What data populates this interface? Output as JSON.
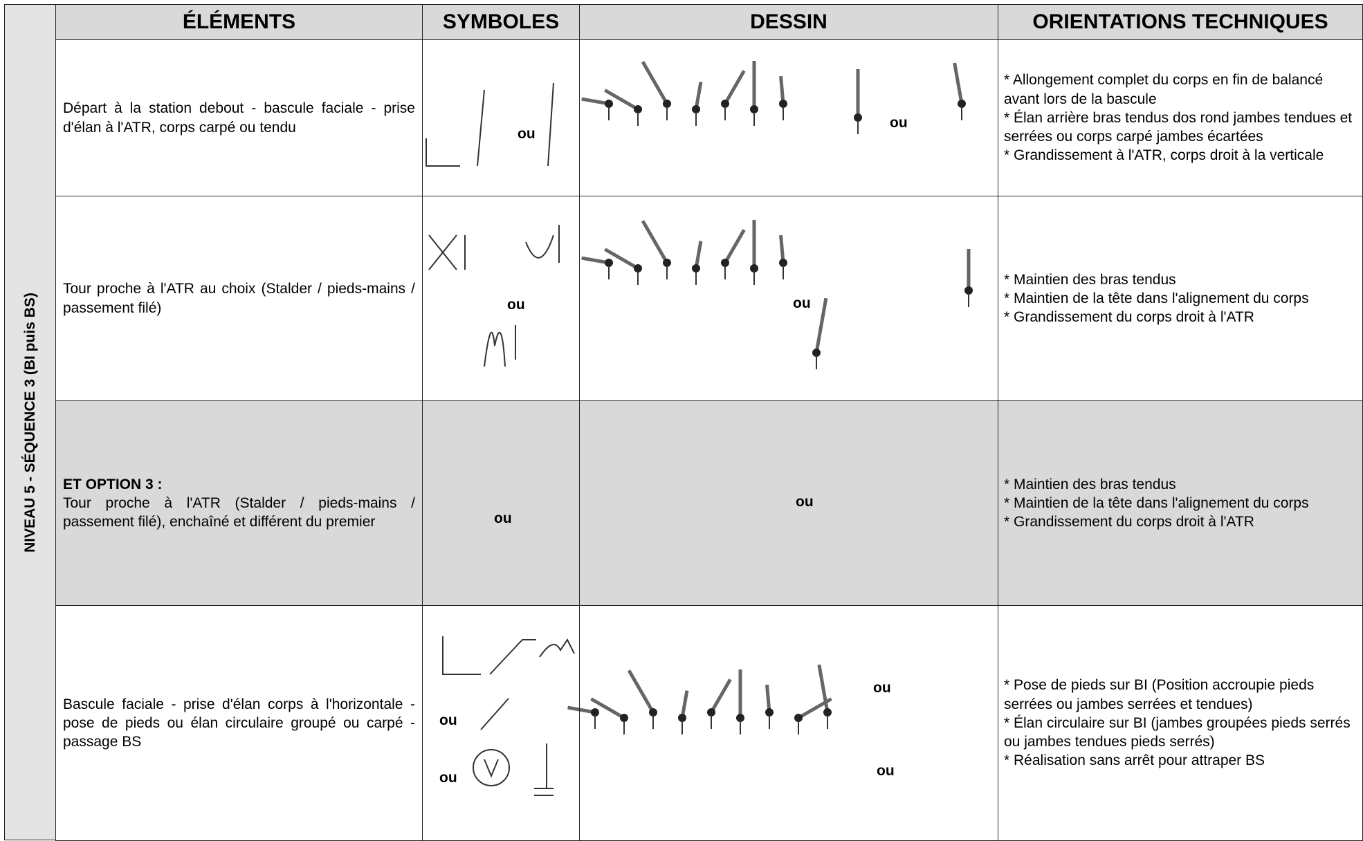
{
  "side_label": "NIVEAU 5 - SÉQUENCE 3 (BI puis BS)",
  "header": [
    "ÉLÉMENTS",
    "SYMBOLES",
    "DESSIN",
    "ORIENTATIONS TECHNIQUES"
  ],
  "rows": [
    {
      "element": "Départ à la station debout - bascule faciale - prise d'élan à l'ATR, corps carpé ou tendu",
      "symbol_separators": [
        "ou"
      ],
      "drawing_separators": [
        "ou"
      ],
      "orientations": [
        "* Allongement complet du corps en fin de balancé avant lors de la bascule",
        "* Élan arrière bras tendus dos rond jambes tendues et serrées ou corps carpé jambes écartées",
        "* Grandissement à l'ATR, corps droit à la verticale"
      ]
    },
    {
      "element": "Tour proche à l'ATR au choix (Stalder / pieds-mains / passement filé)",
      "symbol_separators": [
        "ou"
      ],
      "drawing_separators": [
        "ou"
      ],
      "orientations": [
        "* Maintien des bras tendus",
        "* Maintien de la tête dans l'alignement du corps",
        "* Grandissement du corps droit à l'ATR"
      ]
    },
    {
      "element_heading": "ET OPTION 3 :",
      "element": "Tour proche à l'ATR (Stalder / pieds-mains / passement filé), enchaîné et différent du premier",
      "symbol_separators": [
        "ou"
      ],
      "drawing_separators": [
        "ou"
      ],
      "orientations": [
        "* Maintien des bras tendus",
        "* Maintien de la tête dans l'alignement du corps",
        "* Grandissement du corps droit à l'ATR"
      ]
    },
    {
      "element": "Bascule faciale - prise d'élan corps à l'horizontale - pose de pieds ou élan circulaire groupé ou carpé - passage BS",
      "symbol_separators": [
        "ou",
        "ou"
      ],
      "drawing_separators": [
        "ou",
        "ou"
      ],
      "orientations": [
        "* Pose de pieds sur BI (Position accroupie pieds serrées ou jambes serrées et tendues)",
        "* Élan circulaire sur BI (jambes groupées pieds serrés ou jambes tendues pieds serrés)",
        "* Réalisation sans arrêt pour attraper BS"
      ]
    }
  ]
}
